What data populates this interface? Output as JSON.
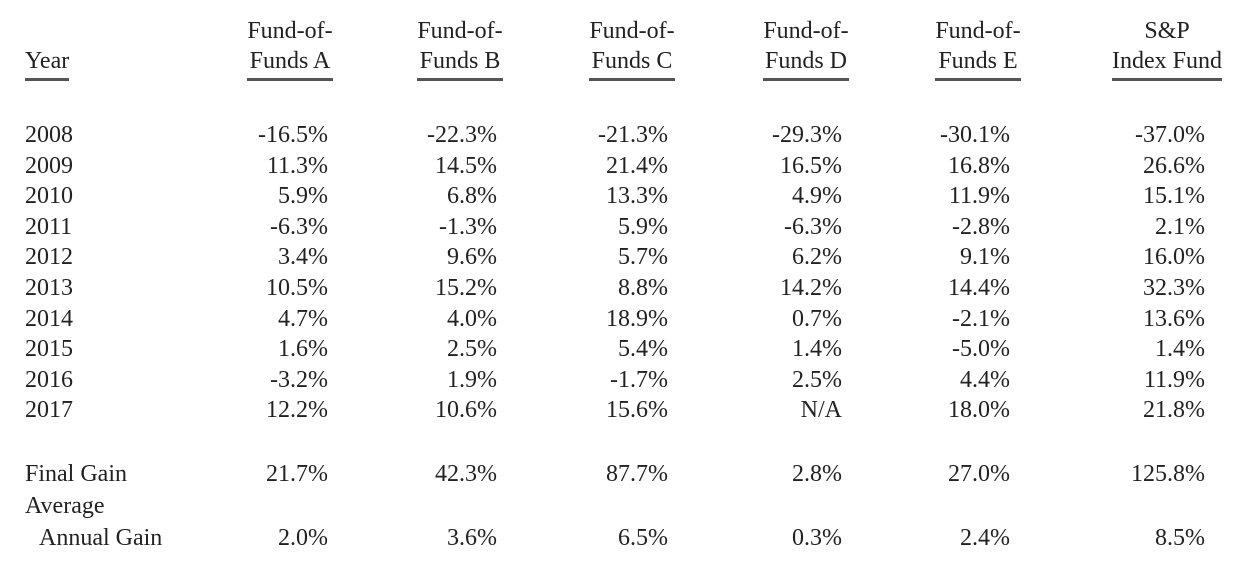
{
  "table": {
    "header": [
      [
        "Year"
      ],
      [
        "Fund-of-",
        "Funds A"
      ],
      [
        "Fund-of-",
        "Funds B"
      ],
      [
        "Fund-of-",
        "Funds C"
      ],
      [
        "Fund-of-",
        "Funds D"
      ],
      [
        "Fund-of-",
        "Funds E"
      ],
      [
        "S&P",
        "Index Fund"
      ]
    ],
    "rows": [
      [
        "2008",
        "-16.5%",
        "-22.3%",
        "-21.3%",
        "-29.3%",
        "-30.1%",
        "-37.0%"
      ],
      [
        "2009",
        "11.3%",
        "14.5%",
        "21.4%",
        "16.5%",
        "16.8%",
        "26.6%"
      ],
      [
        "2010",
        "5.9%",
        "6.8%",
        "13.3%",
        "4.9%",
        "11.9%",
        "15.1%"
      ],
      [
        "2011",
        "-6.3%",
        "-1.3%",
        "5.9%",
        "-6.3%",
        "-2.8%",
        "2.1%"
      ],
      [
        "2012",
        "3.4%",
        "9.6%",
        "5.7%",
        "6.2%",
        "9.1%",
        "16.0%"
      ],
      [
        "2013",
        "10.5%",
        "15.2%",
        "8.8%",
        "14.2%",
        "14.4%",
        "32.3%"
      ],
      [
        "2014",
        "4.7%",
        "4.0%",
        "18.9%",
        "0.7%",
        "-2.1%",
        "13.6%"
      ],
      [
        "2015",
        "1.6%",
        "2.5%",
        "5.4%",
        "1.4%",
        "-5.0%",
        "1.4%"
      ],
      [
        "2016",
        "-3.2%",
        "1.9%",
        "-1.7%",
        "2.5%",
        "4.4%",
        "11.9%"
      ],
      [
        "2017",
        "12.2%",
        "10.6%",
        "15.6%",
        "N/A",
        "18.0%",
        "21.8%"
      ]
    ],
    "summary": [
      {
        "label": [
          "Final Gain"
        ],
        "values": [
          "21.7%",
          "42.3%",
          "87.7%",
          "2.8%",
          "27.0%",
          "125.8%"
        ]
      },
      {
        "label": [
          "Average",
          "Annual Gain"
        ],
        "values": [
          "2.0%",
          "3.6%",
          "6.5%",
          "0.3%",
          "2.4%",
          "8.5%"
        ]
      }
    ]
  }
}
